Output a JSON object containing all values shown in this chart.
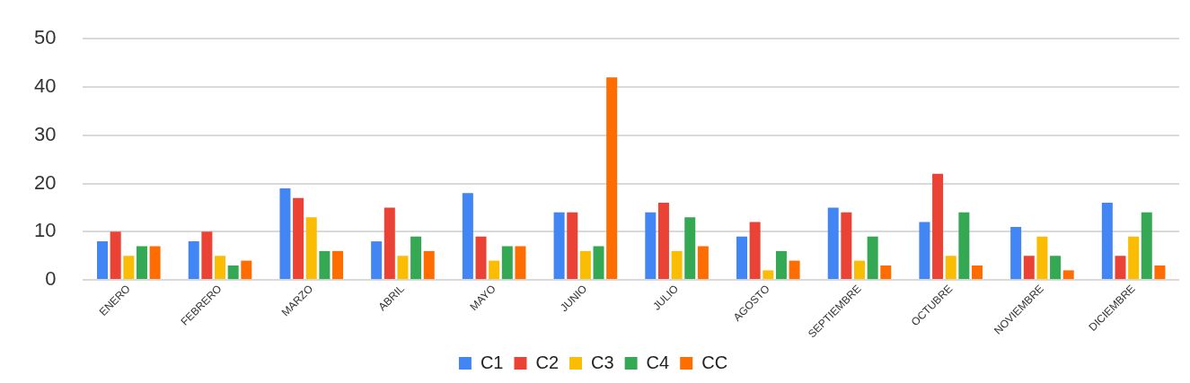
{
  "chart_data": {
    "type": "bar",
    "categories": [
      "ENERO",
      "FEBRERO",
      "MARZO",
      "ABRIL",
      "MAYO",
      "JUNIO",
      "JULIO",
      "AGOSTO",
      "SEPTIEMBRE",
      "OCTUBRE",
      "NOVIEMBRE",
      "DICIEMBRE"
    ],
    "series": [
      {
        "name": "C1",
        "color": "#4285f4",
        "values": [
          8,
          8,
          19,
          8,
          18,
          14,
          14,
          9,
          15,
          12,
          11,
          16
        ]
      },
      {
        "name": "C2",
        "color": "#ea4335",
        "values": [
          10,
          10,
          17,
          15,
          9,
          14,
          16,
          12,
          14,
          22,
          5,
          5
        ]
      },
      {
        "name": "C3",
        "color": "#fbbc04",
        "values": [
          5,
          5,
          13,
          5,
          4,
          6,
          6,
          2,
          4,
          5,
          9,
          9
        ]
      },
      {
        "name": "C4",
        "color": "#34a853",
        "values": [
          7,
          3,
          6,
          9,
          7,
          7,
          13,
          6,
          9,
          14,
          5,
          14
        ]
      },
      {
        "name": "CC",
        "color": "#ff6d01",
        "values": [
          7,
          4,
          6,
          6,
          7,
          42,
          7,
          4,
          3,
          3,
          2,
          3
        ]
      }
    ],
    "ylim": [
      0,
      50
    ],
    "yticks": [
      0,
      10,
      20,
      30,
      40,
      50
    ],
    "grid": "y",
    "legend": "bottom"
  }
}
